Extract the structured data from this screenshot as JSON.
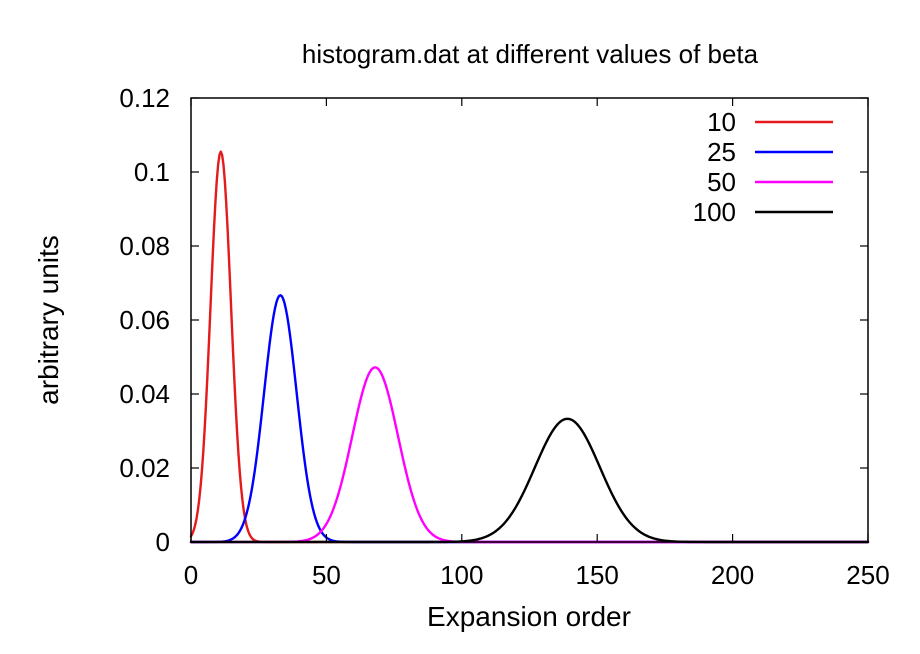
{
  "chart_data": {
    "type": "line",
    "title": "histogram.dat at different values of beta",
    "xlabel": "Expansion order",
    "ylabel": "arbitrary units",
    "xlim": [
      0,
      250
    ],
    "ylim": [
      0,
      0.12
    ],
    "xticks": [
      0,
      50,
      100,
      150,
      200,
      250
    ],
    "xtick_labels": [
      "0",
      "50",
      "100",
      "150",
      "200",
      "250"
    ],
    "yticks": [
      0,
      0.02,
      0.04,
      0.06,
      0.08,
      0.1,
      0.12
    ],
    "ytick_labels": [
      "0",
      "0.02",
      "0.04",
      "0.06",
      "0.08",
      "0.1",
      "0.12"
    ],
    "legend_position": "top-right",
    "grid": false,
    "series": [
      {
        "name": "10",
        "color": "#e41a1c",
        "peak_x": 11,
        "peak_y": 0.1055,
        "sigma": 3.78
      },
      {
        "name": "25",
        "color": "#0000ff",
        "peak_x": 33,
        "peak_y": 0.0667,
        "sigma": 6.0
      },
      {
        "name": "50",
        "color": "#ff00ff",
        "peak_x": 68,
        "peak_y": 0.0472,
        "sigma": 8.45
      },
      {
        "name": "100",
        "color": "#000000",
        "peak_x": 139,
        "peak_y": 0.0333,
        "sigma": 12.0
      }
    ]
  }
}
